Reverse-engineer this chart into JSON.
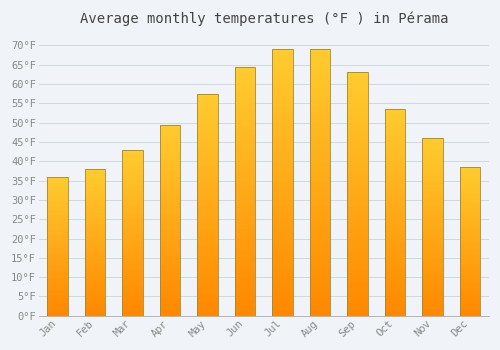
{
  "title": "Average monthly temperatures (°F ) in Pérama",
  "months": [
    "Jan",
    "Feb",
    "Mar",
    "Apr",
    "May",
    "Jun",
    "Jul",
    "Aug",
    "Sep",
    "Oct",
    "Nov",
    "Dec"
  ],
  "values": [
    36,
    38,
    43,
    49.5,
    57.5,
    64.5,
    69,
    69,
    63,
    53.5,
    46,
    38.5
  ],
  "bar_color_bottom": "#FFAA00",
  "bar_color_top": "#FFD040",
  "bar_edge_color": "#A08830",
  "background_color": "#F0F4F8",
  "plot_bg_color": "#F0F4F8",
  "grid_color": "#D0D8E0",
  "tick_label_color": "#888888",
  "title_color": "#444444",
  "ylim": [
    0,
    73
  ],
  "yticks": [
    0,
    5,
    10,
    15,
    20,
    25,
    30,
    35,
    40,
    45,
    50,
    55,
    60,
    65,
    70
  ],
  "ytick_labels": [
    "0°F",
    "5°F",
    "10°F",
    "15°F",
    "20°F",
    "25°F",
    "30°F",
    "35°F",
    "40°F",
    "45°F",
    "50°F",
    "55°F",
    "60°F",
    "65°F",
    "70°F"
  ],
  "bar_width": 0.55,
  "title_fontsize": 10,
  "tick_fontsize": 7.5
}
